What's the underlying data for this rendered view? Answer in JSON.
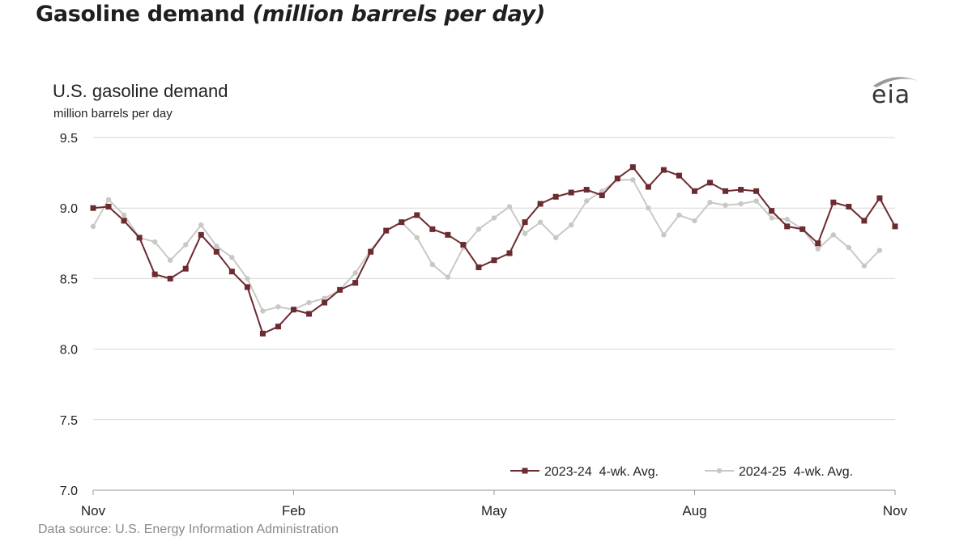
{
  "headline": {
    "main": "Gasoline demand ",
    "italic": "(million barrels per day)"
  },
  "chart_title": "U.S. gasoline demand",
  "chart_units": "million barrels per day",
  "source": "Data source: U.S. Energy Information Administration",
  "logo_text": "eia",
  "colors": {
    "series_2023_24": "#6b2b2f",
    "series_2024_25": "#c8c8c4",
    "grid": "#d6d6d6",
    "axis": "#9a9a9a"
  },
  "chart_data": {
    "type": "line",
    "title": "U.S. gasoline demand",
    "ylabel": "million barrels per day",
    "xlabel": "",
    "ylim": [
      7.0,
      9.5
    ],
    "yticks": [
      "9.5",
      "9.0",
      "8.5",
      "8.0",
      "7.5",
      "7.0"
    ],
    "xticks": [
      "Nov",
      "Feb",
      "May",
      "Aug",
      "Nov"
    ],
    "grid": true,
    "legend_position": "bottom-right",
    "series": [
      {
        "name": "2023-24  4-wk. Avg.",
        "marker": "square",
        "values": [
          9.0,
          9.01,
          8.91,
          8.79,
          8.53,
          8.5,
          8.57,
          8.81,
          8.69,
          8.55,
          8.44,
          8.11,
          8.16,
          8.28,
          8.25,
          8.33,
          8.42,
          8.47,
          8.69,
          8.84,
          8.9,
          8.95,
          8.85,
          8.81,
          8.74,
          8.58,
          8.63,
          8.68,
          8.9,
          9.03,
          9.08,
          9.11,
          9.13,
          9.09,
          9.21,
          9.29,
          9.15,
          9.27,
          9.23,
          9.12,
          9.18,
          9.12,
          9.13,
          9.12,
          8.98,
          8.87,
          8.85,
          8.75,
          9.04,
          9.01,
          8.91,
          9.07,
          8.87
        ]
      },
      {
        "name": "2024-25  4-wk. Avg.",
        "marker": "diamond",
        "values": [
          8.87,
          9.06,
          8.95,
          8.79,
          8.76,
          8.63,
          8.74,
          8.88,
          8.73,
          8.65,
          8.5,
          8.27,
          8.3,
          8.28,
          8.33,
          8.36,
          8.42,
          8.54,
          8.7,
          8.84,
          8.9,
          8.79,
          8.6,
          8.51,
          8.72,
          8.85,
          8.93,
          9.01,
          8.82,
          8.9,
          8.79,
          8.88,
          9.05,
          9.12,
          9.2,
          9.2,
          9.0,
          8.81,
          8.95,
          8.91,
          9.04,
          9.02,
          9.03,
          9.05,
          8.93,
          8.92,
          8.85,
          8.71,
          8.81,
          8.72,
          8.59,
          8.7
        ]
      }
    ]
  }
}
